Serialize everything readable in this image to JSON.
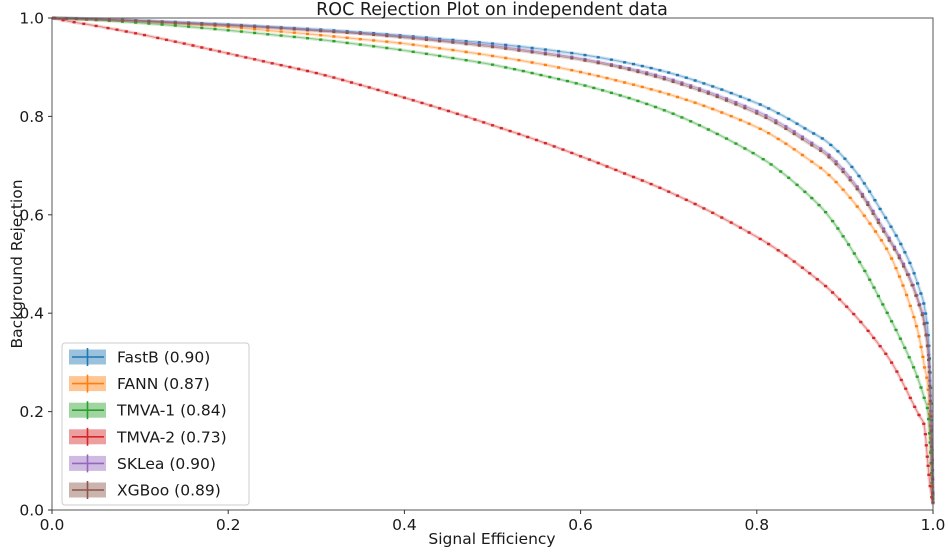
{
  "chart_data": {
    "type": "line",
    "title": "ROC Rejection Plot on independent data",
    "xlabel": "Signal Efficiency",
    "ylabel": "Background Rejection",
    "xlim": [
      0.0,
      1.0
    ],
    "ylim": [
      0.0,
      1.0
    ],
    "xticks": [
      "0.0",
      "0.2",
      "0.4",
      "0.6",
      "0.8",
      "1.0"
    ],
    "yticks": [
      "0.0",
      "0.2",
      "0.4",
      "0.6",
      "0.8",
      "1.0"
    ],
    "grid": false,
    "legend_position": "lower left",
    "series": [
      {
        "name": "FastB",
        "label": "FastB (0.90)",
        "auc": 0.9,
        "color": "#1f77b4",
        "points": [
          [
            0,
            1
          ],
          [
            0.05,
            0.998
          ],
          [
            0.1,
            0.995
          ],
          [
            0.15,
            0.991
          ],
          [
            0.2,
            0.987
          ],
          [
            0.25,
            0.982
          ],
          [
            0.3,
            0.977
          ],
          [
            0.35,
            0.971
          ],
          [
            0.4,
            0.964
          ],
          [
            0.45,
            0.956
          ],
          [
            0.5,
            0.948
          ],
          [
            0.55,
            0.938
          ],
          [
            0.6,
            0.926
          ],
          [
            0.65,
            0.91
          ],
          [
            0.7,
            0.889
          ],
          [
            0.75,
            0.861
          ],
          [
            0.8,
            0.827
          ],
          [
            0.83,
            0.801
          ],
          [
            0.86,
            0.77
          ],
          [
            0.88,
            0.748
          ],
          [
            0.9,
            0.714
          ],
          [
            0.92,
            0.669
          ],
          [
            0.94,
            0.612
          ],
          [
            0.96,
            0.552
          ],
          [
            0.975,
            0.497
          ],
          [
            0.985,
            0.447
          ],
          [
            0.99,
            0.415
          ],
          [
            0.995,
            0.345
          ],
          [
            0.998,
            0.2
          ],
          [
            1,
            0.02
          ]
        ]
      },
      {
        "name": "FANN",
        "label": "FANN (0.87)",
        "auc": 0.87,
        "color": "#ff7f0e",
        "points": [
          [
            0,
            1
          ],
          [
            0.05,
            0.997
          ],
          [
            0.1,
            0.993
          ],
          [
            0.15,
            0.988
          ],
          [
            0.2,
            0.982
          ],
          [
            0.25,
            0.974
          ],
          [
            0.3,
            0.966
          ],
          [
            0.35,
            0.957
          ],
          [
            0.4,
            0.948
          ],
          [
            0.45,
            0.936
          ],
          [
            0.5,
            0.923
          ],
          [
            0.55,
            0.908
          ],
          [
            0.6,
            0.89
          ],
          [
            0.65,
            0.869
          ],
          [
            0.7,
            0.845
          ],
          [
            0.75,
            0.815
          ],
          [
            0.8,
            0.778
          ],
          [
            0.83,
            0.748
          ],
          [
            0.86,
            0.711
          ],
          [
            0.88,
            0.684
          ],
          [
            0.9,
            0.647
          ],
          [
            0.92,
            0.603
          ],
          [
            0.94,
            0.552
          ],
          [
            0.95,
            0.522
          ],
          [
            0.96,
            0.483
          ],
          [
            0.97,
            0.437
          ],
          [
            0.98,
            0.382
          ],
          [
            0.985,
            0.345
          ],
          [
            0.99,
            0.295
          ],
          [
            0.995,
            0.232
          ],
          [
            1,
            0.015
          ]
        ]
      },
      {
        "name": "TMVA-1",
        "label": "TMVA-1 (0.84)",
        "auc": 0.84,
        "color": "#2ca02c",
        "points": [
          [
            0,
            1
          ],
          [
            0.05,
            0.996
          ],
          [
            0.1,
            0.99
          ],
          [
            0.15,
            0.983
          ],
          [
            0.2,
            0.975
          ],
          [
            0.25,
            0.966
          ],
          [
            0.3,
            0.957
          ],
          [
            0.35,
            0.946
          ],
          [
            0.4,
            0.934
          ],
          [
            0.45,
            0.92
          ],
          [
            0.5,
            0.905
          ],
          [
            0.55,
            0.886
          ],
          [
            0.6,
            0.865
          ],
          [
            0.65,
            0.84
          ],
          [
            0.7,
            0.809
          ],
          [
            0.75,
            0.769
          ],
          [
            0.8,
            0.721
          ],
          [
            0.83,
            0.684
          ],
          [
            0.86,
            0.638
          ],
          [
            0.88,
            0.601
          ],
          [
            0.9,
            0.551
          ],
          [
            0.92,
            0.494
          ],
          [
            0.93,
            0.462
          ],
          [
            0.94,
            0.428
          ],
          [
            0.95,
            0.394
          ],
          [
            0.96,
            0.359
          ],
          [
            0.97,
            0.322
          ],
          [
            0.98,
            0.281
          ],
          [
            0.99,
            0.228
          ],
          [
            0.995,
            0.185
          ],
          [
            1,
            0.012
          ]
        ]
      },
      {
        "name": "TMVA-2",
        "label": "TMVA-2 (0.73)",
        "auc": 0.73,
        "color": "#d62728",
        "points": [
          [
            0,
            1
          ],
          [
            0.02,
            0.993
          ],
          [
            0.05,
            0.984
          ],
          [
            0.1,
            0.967
          ],
          [
            0.15,
            0.948
          ],
          [
            0.2,
            0.928
          ],
          [
            0.25,
            0.908
          ],
          [
            0.3,
            0.888
          ],
          [
            0.35,
            0.864
          ],
          [
            0.4,
            0.838
          ],
          [
            0.45,
            0.811
          ],
          [
            0.5,
            0.782
          ],
          [
            0.55,
            0.752
          ],
          [
            0.6,
            0.719
          ],
          [
            0.65,
            0.684
          ],
          [
            0.7,
            0.647
          ],
          [
            0.75,
            0.604
          ],
          [
            0.8,
            0.555
          ],
          [
            0.83,
            0.521
          ],
          [
            0.86,
            0.481
          ],
          [
            0.88,
            0.452
          ],
          [
            0.9,
            0.417
          ],
          [
            0.92,
            0.378
          ],
          [
            0.94,
            0.333
          ],
          [
            0.95,
            0.308
          ],
          [
            0.96,
            0.278
          ],
          [
            0.97,
            0.243
          ],
          [
            0.98,
            0.207
          ],
          [
            0.985,
            0.19
          ],
          [
            0.99,
            0.172
          ],
          [
            0.993,
            0.12
          ],
          [
            0.996,
            0.06
          ],
          [
            1,
            0.01
          ]
        ]
      },
      {
        "name": "SKLea",
        "label": "SKLea (0.90)",
        "auc": 0.9,
        "color": "#9467bd",
        "points": [
          [
            0,
            1
          ],
          [
            0.05,
            0.998
          ],
          [
            0.1,
            0.994
          ],
          [
            0.15,
            0.99
          ],
          [
            0.2,
            0.986
          ],
          [
            0.25,
            0.981
          ],
          [
            0.3,
            0.975
          ],
          [
            0.35,
            0.969
          ],
          [
            0.4,
            0.962
          ],
          [
            0.45,
            0.953
          ],
          [
            0.5,
            0.944
          ],
          [
            0.55,
            0.932
          ],
          [
            0.6,
            0.918
          ],
          [
            0.65,
            0.9
          ],
          [
            0.7,
            0.877
          ],
          [
            0.75,
            0.847
          ],
          [
            0.8,
            0.811
          ],
          [
            0.83,
            0.783
          ],
          [
            0.86,
            0.749
          ],
          [
            0.88,
            0.725
          ],
          [
            0.9,
            0.689
          ],
          [
            0.92,
            0.642
          ],
          [
            0.94,
            0.584
          ],
          [
            0.96,
            0.523
          ],
          [
            0.975,
            0.468
          ],
          [
            0.985,
            0.418
          ],
          [
            0.99,
            0.385
          ],
          [
            0.995,
            0.315
          ],
          [
            0.998,
            0.17
          ],
          [
            1,
            0.015
          ]
        ]
      },
      {
        "name": "XGBoo",
        "label": "XGBoo (0.89)",
        "auc": 0.89,
        "color": "#8c564b",
        "points": [
          [
            0,
            1
          ],
          [
            0.05,
            0.997
          ],
          [
            0.1,
            0.994
          ],
          [
            0.15,
            0.989
          ],
          [
            0.2,
            0.985
          ],
          [
            0.25,
            0.98
          ],
          [
            0.3,
            0.974
          ],
          [
            0.35,
            0.968
          ],
          [
            0.4,
            0.96
          ],
          [
            0.45,
            0.951
          ],
          [
            0.5,
            0.941
          ],
          [
            0.55,
            0.929
          ],
          [
            0.6,
            0.915
          ],
          [
            0.65,
            0.897
          ],
          [
            0.7,
            0.873
          ],
          [
            0.75,
            0.843
          ],
          [
            0.8,
            0.806
          ],
          [
            0.83,
            0.778
          ],
          [
            0.86,
            0.744
          ],
          [
            0.88,
            0.72
          ],
          [
            0.9,
            0.683
          ],
          [
            0.92,
            0.637
          ],
          [
            0.94,
            0.578
          ],
          [
            0.96,
            0.518
          ],
          [
            0.975,
            0.462
          ],
          [
            0.985,
            0.412
          ],
          [
            0.99,
            0.378
          ],
          [
            0.995,
            0.305
          ],
          [
            0.998,
            0.16
          ],
          [
            1,
            0.015
          ]
        ]
      }
    ]
  }
}
